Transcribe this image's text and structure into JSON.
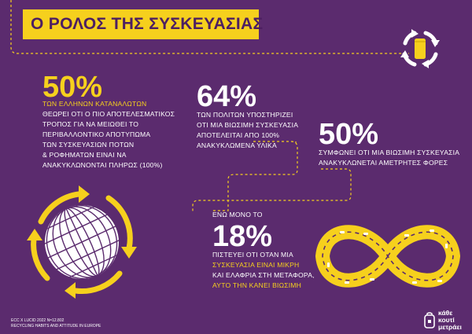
{
  "header": {
    "title": "Ο ΡΟΛΟΣ ΤΗΣ ΣΥΣΚΕΥΑΣΙΑΣ"
  },
  "stats": {
    "s1": {
      "value": "50%",
      "lines": [
        "ΤΩΝ ΕΛΛΗΝΩΝ ΚΑΤΑΝΑΛΩΤΩΝ",
        "ΘΕΩΡΕΙ ΟΤΙ Ο ΠΙΟ ΑΠΟΤΕΛΕΣΜΑΤΙΚΟΣ",
        "ΤΡΟΠΟΣ ΓΙΑ ΝΑ ΜΕΙΩΘΕΙ ΤΟ",
        "ΠΕΡΙΒΑΛΛΟΝΤΙΚΟ ΑΠΟΤΥΠΩΜΑ",
        "ΤΩΝ ΣΥΣΚΕΥΑΣΙΩΝ ΠΟΤΩΝ",
        "& ΡΟΦΗΜΑΤΩΝ ΕΙΝΑΙ ΝΑ",
        "ΑΝΑΚΥΚΛΩΝΟΝΤΑΙ ΠΛΗΡΩΣ (100%)"
      ]
    },
    "s2": {
      "value": "64%",
      "lines": [
        "ΤΩΝ ΠΟΛΙΤΩΝ ΥΠΟΣΤΗΡΙΖΕΙ",
        "ΟΤΙ ΜΙΑ ΒΙΩΣΙΜΗ ΣΥΣΚΕΥΑΣΙΑ",
        "ΑΠΟΤΕΛΕΙΤΑΙ ΑΠΟ 100%",
        "ΑΝΑΚΥΚΛΩΜΕΝΑ ΥΛΙΚΑ"
      ]
    },
    "s3": {
      "value": "50%",
      "lines": [
        "ΣΥΜΦΩΝΕΙ ΟΤΙ ΜΙΑ ΒΙΩΣΙΜΗ ΣΥΣΚΕΥΑΣΙΑ",
        "ΑΝΑΚΥΚΛΩΝΕΤΑΙ ΑΜΕΤΡΗΤΕΣ ΦΟΡΕΣ"
      ]
    },
    "s4": {
      "prefix": "ΕΝΩ ΜΟΝΟ ΤΟ",
      "value": "18%",
      "lines": [
        "ΠΙΣΤΕΥΕΙ ΟΤΙ ΟΤΑΝ ΜΙΑ",
        "ΣΥΣΚΕΥΑΣΙΑ ΕΙΝΑΙ ΜΙΚΡΗ",
        "ΚΑΙ ΕΛΑΦΡΙΑ ΣΤΗ ΜΕΤΑΦΟΡΑ,",
        "ΑΥΤΟ ΤΗΝ ΚΑΝΕΙ ΒΙΩΣΙΜΗ"
      ]
    }
  },
  "footer": {
    "source_lines": [
      "ECC X LUCID 2022 N=12.802",
      "RECYCLING HABITS AND ATTITUDE IN EUROPE"
    ],
    "logo_lines": [
      "κάθε",
      "κουτί",
      "μετράει"
    ]
  },
  "icons": {
    "recycle_can": "recycle-can-icon",
    "globe": "globe-recycle-icon",
    "infinity": "infinity-road-icon",
    "logo": "can-logo-icon"
  },
  "colors": {
    "background": "#5b2b6e",
    "accent": "#f6d01d",
    "text": "#ffffff"
  }
}
